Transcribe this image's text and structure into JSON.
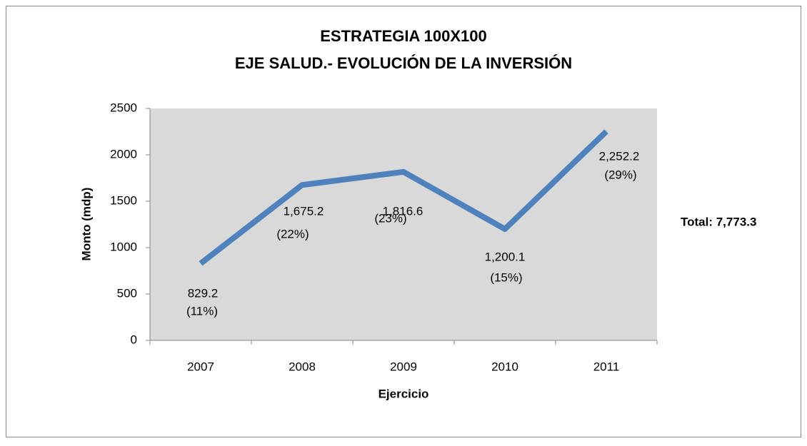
{
  "chart_data": {
    "type": "line",
    "title": "ESTRATEGIA 100X100",
    "subtitle": "EJE SALUD.- EVOLUCIÓN DE LA INVERSIÓN",
    "x_label": "Ejercicio",
    "y_label": "Monto (mdp)",
    "annotation": "Total:  7,773.3",
    "categories": [
      "2007",
      "2008",
      "2009",
      "2010",
      "2011"
    ],
    "series": [
      {
        "name": "Monto",
        "color": "#4f81bd",
        "values": [
          829.2,
          1675.2,
          1816.6,
          1200.1,
          2252.2
        ],
        "value_labels": [
          "829.2",
          "1,675.2",
          "1,816.6",
          "1,200.1",
          "2,252.2"
        ],
        "percent_labels": [
          "(11%)",
          "(22%)",
          "(23%)",
          "(15%)",
          "(29%)"
        ]
      }
    ],
    "ylim": [
      0,
      2500
    ],
    "yticks": [
      0,
      500,
      1000,
      1500,
      2000,
      2500
    ],
    "plot_background": "#d9d9d9"
  }
}
